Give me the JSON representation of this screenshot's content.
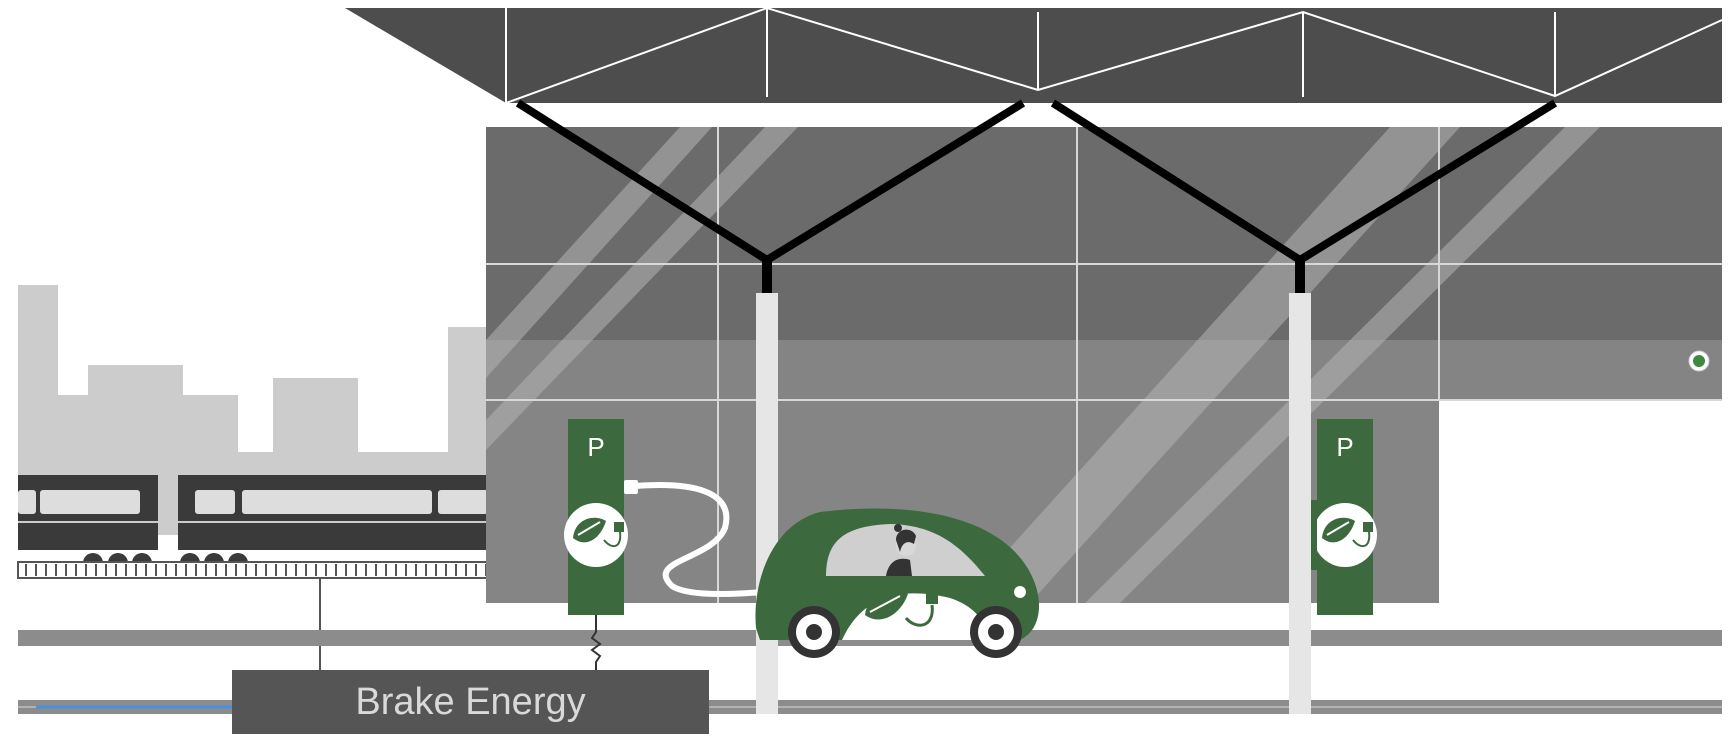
{
  "scene": {
    "caption": "Brake Energy",
    "charger_sign_left": "P",
    "charger_sign_right": "P"
  },
  "colors": {
    "canopy": "#4d4d4d",
    "facade_dark": "#6b6b6b",
    "facade_mid": "#8a8a8a",
    "city_skyline": "#cccccc",
    "train": "#3a3a3a",
    "car_green": "#3c6a3e",
    "indicator": "#3c8a3e",
    "energy_line": "#4a90e2",
    "caption_box": "#555555",
    "caption_text": "#d9d9d9"
  },
  "icons": [
    "leaf-plug-icon",
    "person-icon",
    "status-dot-icon"
  ]
}
